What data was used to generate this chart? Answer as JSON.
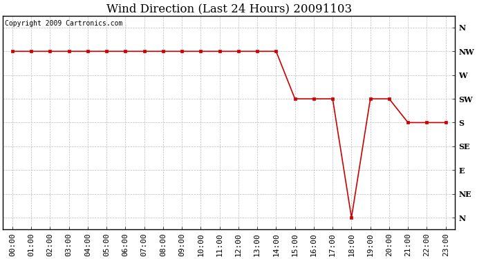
{
  "title": "Wind Direction (Last 24 Hours) 20091103",
  "copyright": "Copyright 2009 Cartronics.com",
  "x_labels": [
    "00:00",
    "01:00",
    "02:00",
    "03:00",
    "04:00",
    "05:00",
    "06:00",
    "07:00",
    "08:00",
    "09:00",
    "10:00",
    "11:00",
    "12:00",
    "13:00",
    "14:00",
    "15:00",
    "16:00",
    "17:00",
    "18:00",
    "19:00",
    "20:00",
    "21:00",
    "22:00",
    "23:00"
  ],
  "y_ticks": [
    0,
    1,
    2,
    3,
    4,
    5,
    6,
    7,
    8
  ],
  "y_labels": [
    "N",
    "NE",
    "E",
    "SE",
    "S",
    "SW",
    "W",
    "NW",
    "N"
  ],
  "data_values": [
    7,
    7,
    7,
    7,
    7,
    7,
    7,
    7,
    7,
    7,
    7,
    7,
    7,
    7,
    7,
    5,
    5,
    5,
    0,
    5,
    5,
    4,
    4,
    4
  ],
  "line_color": "#cc0000",
  "marker": "s",
  "marker_size": 3,
  "bg_color": "#ffffff",
  "grid_color": "#bbbbbb",
  "title_fontsize": 12,
  "axis_label_fontsize": 8,
  "copyright_fontsize": 7,
  "fig_width": 6.9,
  "fig_height": 3.75,
  "dpi": 100
}
